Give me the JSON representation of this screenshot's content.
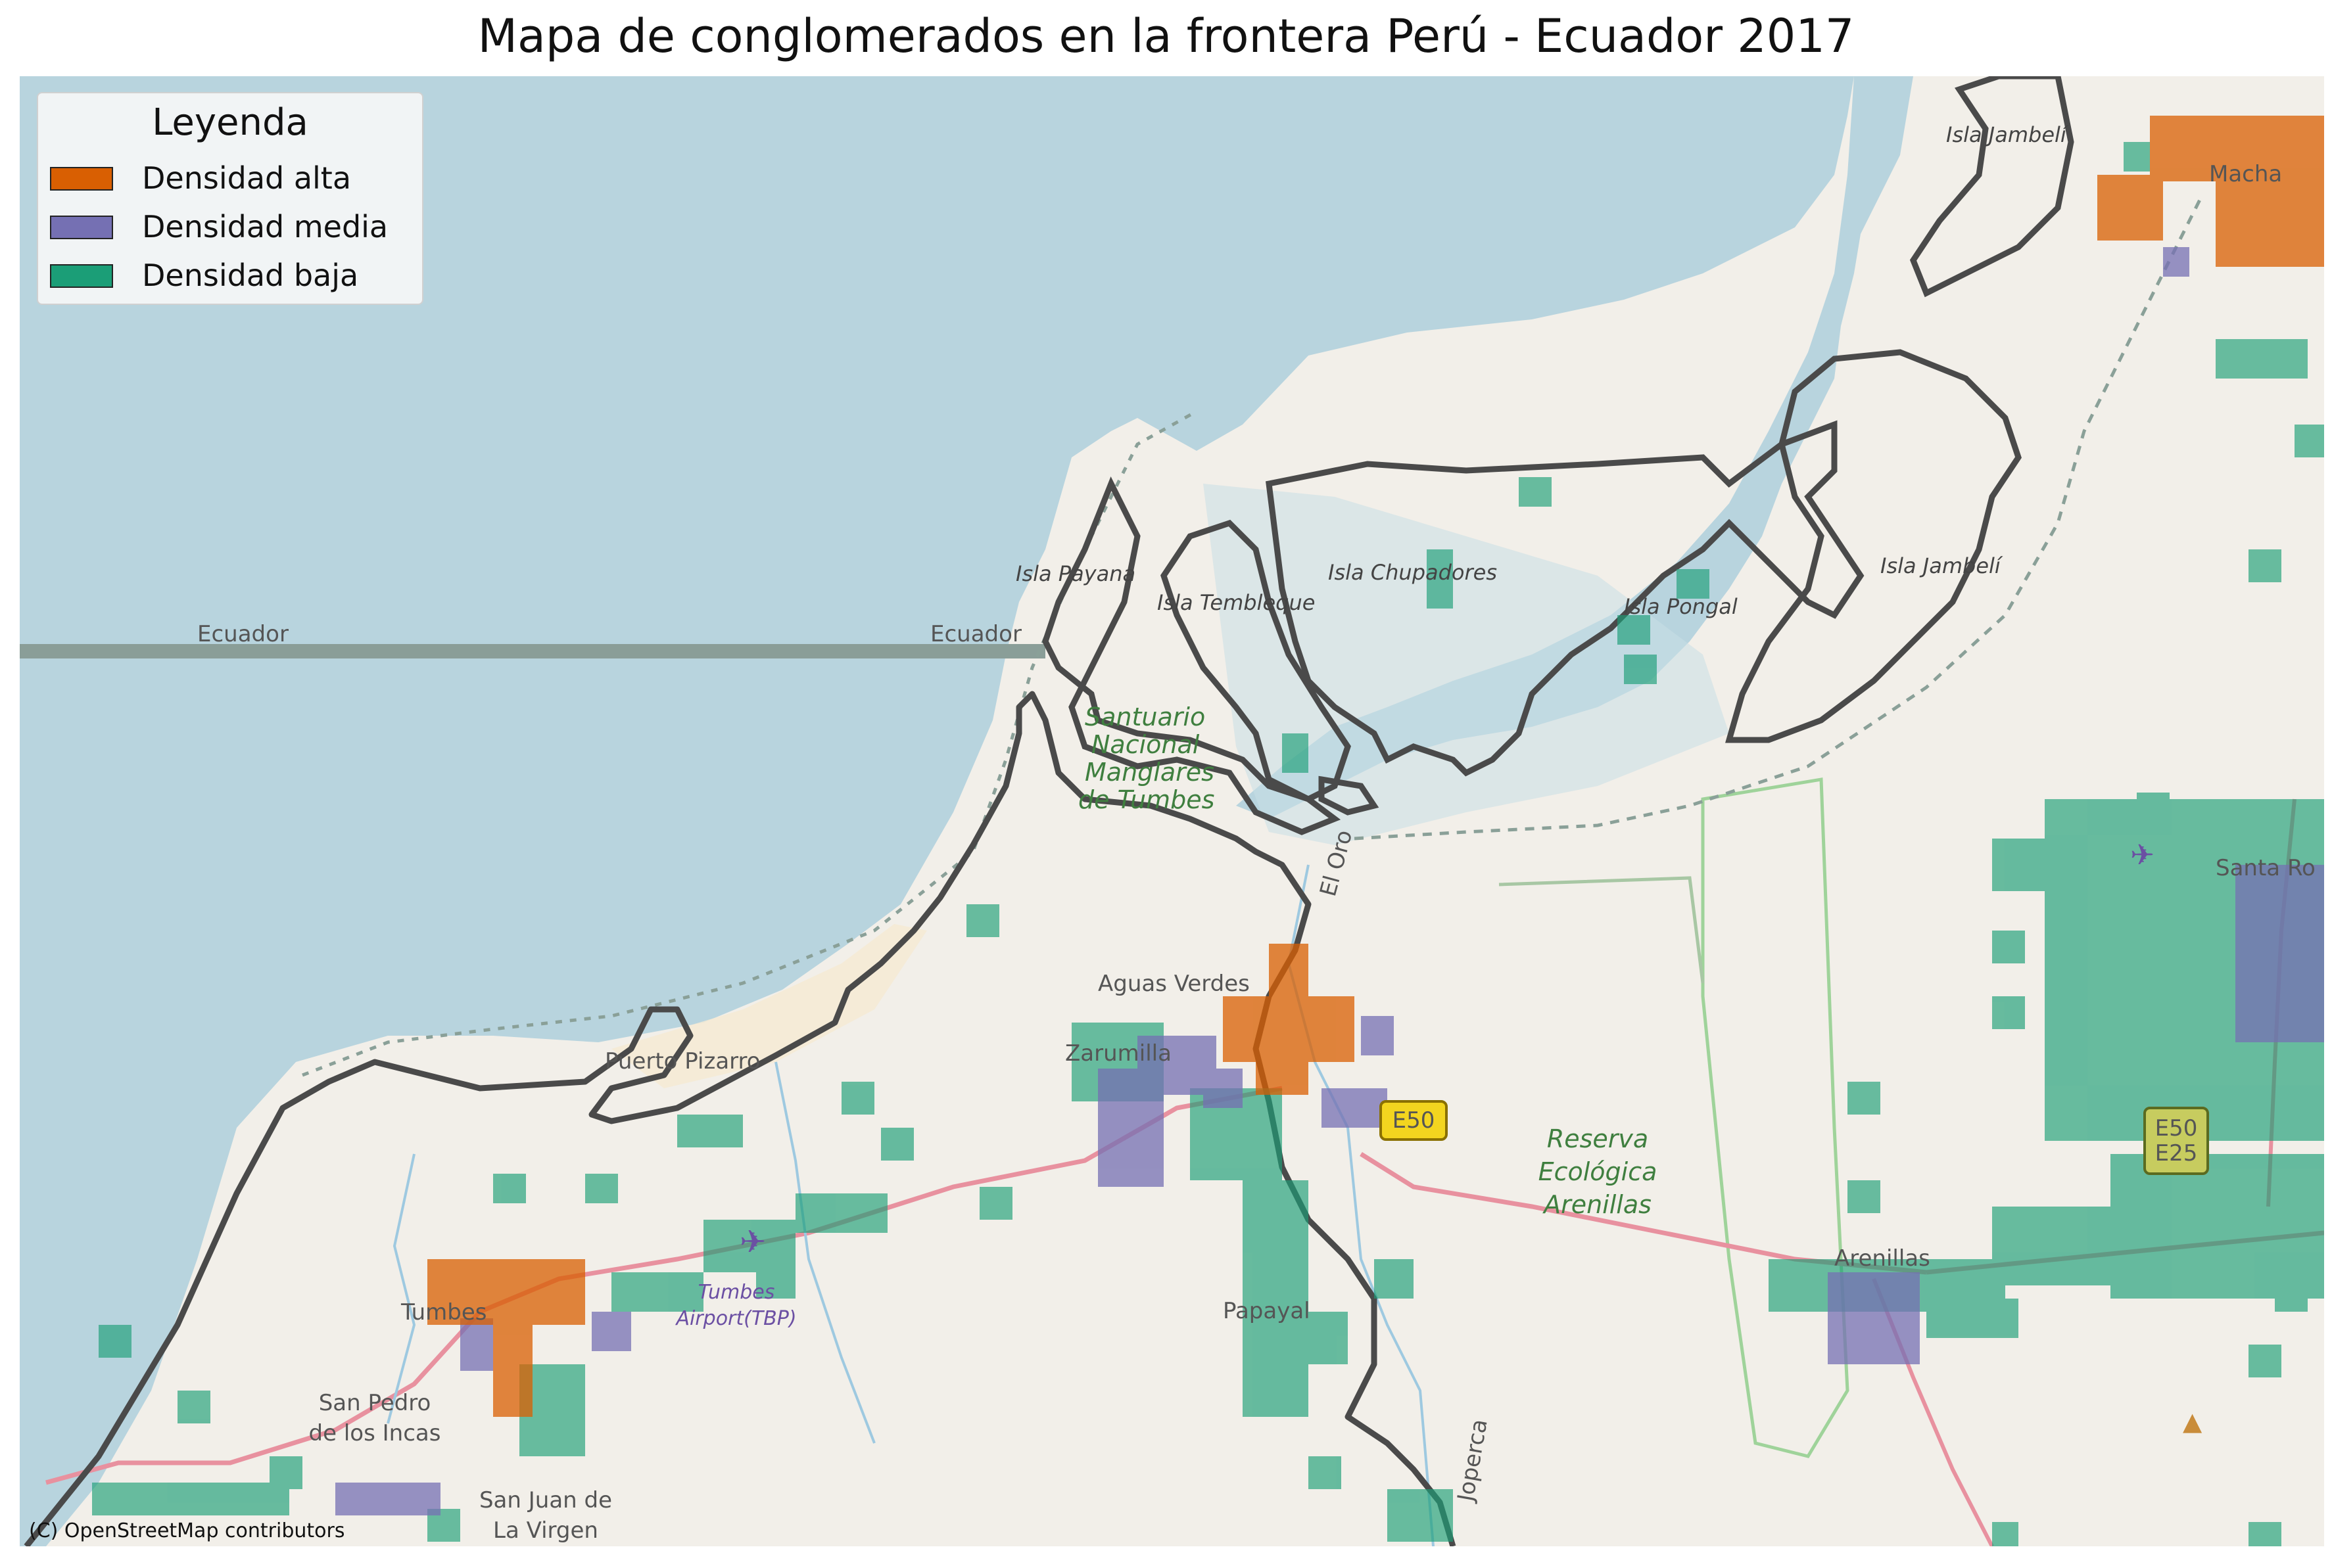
{
  "title": "Mapa de conglomerados en la frontera Perú - Ecuador 2017",
  "legend": {
    "title": "Leyenda",
    "items": [
      {
        "label": "Densidad alta",
        "color": "#d95f02"
      },
      {
        "label": "Densidad media",
        "color": "#7570b3"
      },
      {
        "label": "Densidad baja",
        "color": "#1b9e77"
      }
    ]
  },
  "attribution": "(C) OpenStreetMap contributors",
  "colors": {
    "sea": "#b8d4de",
    "land": "#f2efe9",
    "border_line": "#444444",
    "country_line": "#8a9e98",
    "reserve_outline": "#9fd39a",
    "road": "#e8919f"
  },
  "map_labels": {
    "ecuador_1": "Ecuador",
    "ecuador_2": "Ecuador",
    "isla_jambeli_top": "Isla Jambelí",
    "machala": "Macha",
    "isla_payana": "Isla Payana",
    "isla_tembleque": "Isla Tembleque",
    "isla_chupadores": "Isla Chupadores",
    "isla_pongal": "Isla Pongal",
    "isla_jambeli": "Isla Jambelí",
    "santuario_1": "Santuario",
    "santuario_2": "Nacional",
    "santuario_3": "Manglares",
    "santuario_4": "de Tumbes",
    "el_oro": "El Oro",
    "santa_rosa": "Santa Ro",
    "aguas_verdes": "Aguas Verdes",
    "zarumilla": "Zarumilla",
    "puerto_pizarro": "Puerto Pizarro",
    "e50": "E50",
    "e50_2": "E50",
    "e25": "E25",
    "reserva_1": "Reserva",
    "reserva_2": "Ecológica",
    "reserva_3": "Arenillas",
    "arenillas": "Arenillas",
    "tumbes_airport_1": "Tumbes",
    "tumbes_airport_2": "Airport(TBP)",
    "tumbes": "Tumbes",
    "papayal": "Papayal",
    "san_pedro_1": "San Pedro",
    "san_pedro_2": "de los Incas",
    "san_juan_1": "San Juan de",
    "san_juan_2": "La Virgen",
    "joperca": "Joperca"
  }
}
